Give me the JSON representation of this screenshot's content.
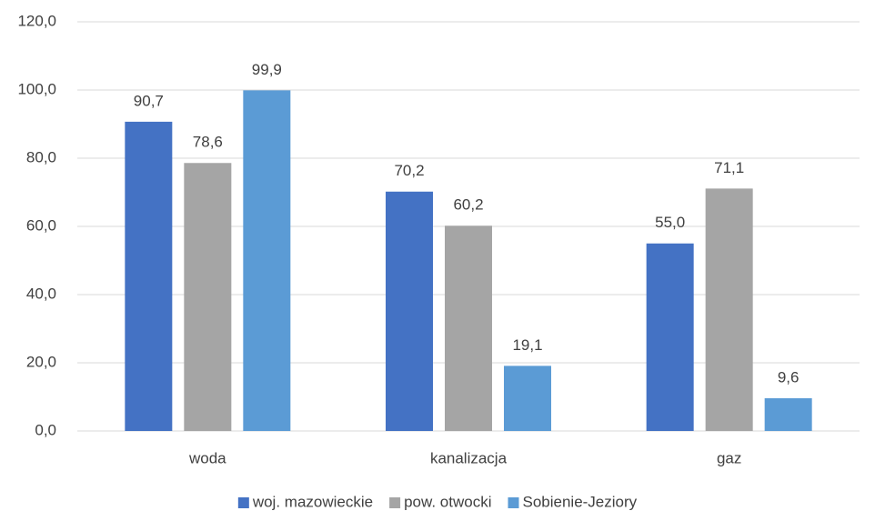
{
  "chart_data": {
    "type": "bar",
    "categories": [
      "woda",
      "kanalizacja",
      "gaz"
    ],
    "series": [
      {
        "name": "woj. mazowieckie",
        "color": "#4472c4",
        "values": [
          90.7,
          70.2,
          55.0
        ],
        "value_labels": [
          "90,7",
          "70,2",
          "55,0"
        ]
      },
      {
        "name": "pow. otwocki",
        "color": "#a5a5a5",
        "values": [
          78.6,
          60.2,
          71.1
        ],
        "value_labels": [
          "78,6",
          "60,2",
          "71,1"
        ]
      },
      {
        "name": "Sobienie-Jeziory",
        "color": "#5b9bd5",
        "values": [
          99.9,
          19.1,
          9.6
        ],
        "value_labels": [
          "99,9",
          "19,1",
          "9,6"
        ]
      }
    ],
    "ylim": [
      0,
      120
    ],
    "yticks": [
      {
        "value": 0,
        "label": "0,0"
      },
      {
        "value": 20,
        "label": "20,0"
      },
      {
        "value": 40,
        "label": "40,0"
      },
      {
        "value": 60,
        "label": "60,0"
      },
      {
        "value": 80,
        "label": "80,0"
      },
      {
        "value": 100,
        "label": "100,0"
      },
      {
        "value": 120,
        "label": "120,0"
      }
    ],
    "grid": true,
    "legend": "bottom"
  }
}
